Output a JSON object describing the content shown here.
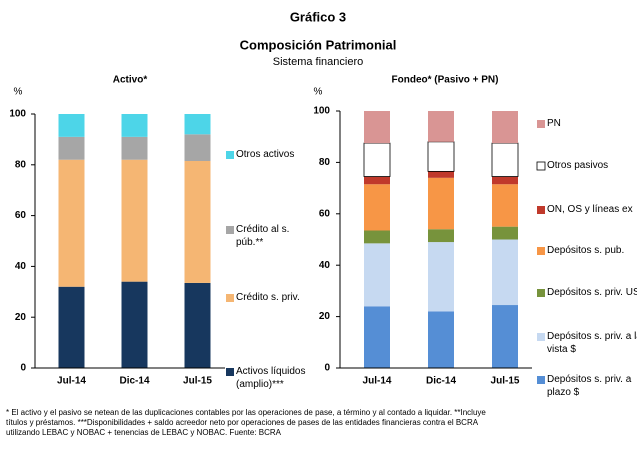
{
  "header": {
    "label": "Gráfico 3",
    "title": "Composición Patrimonial",
    "subtitle": "Sistema financiero"
  },
  "chart_data": [
    {
      "type": "bar",
      "stacked": true,
      "title": "Activo*",
      "y_label": "%",
      "categories": [
        "Jul-14",
        "Dic-14",
        "Jul-15"
      ],
      "series": [
        {
          "name": "Activos líquidos (amplio)***",
          "color": "#17375e",
          "values": [
            32,
            34,
            33.5
          ]
        },
        {
          "name": "Crédito s. priv.",
          "color": "#f5b673",
          "values": [
            50,
            48,
            48
          ]
        },
        {
          "name": "Crédito al s. púb.**",
          "color": "#a6a6a6",
          "values": [
            9,
            9,
            10.5
          ]
        },
        {
          "name": "Otros activos",
          "color": "#4dd5e8",
          "values": [
            9,
            9,
            8
          ]
        }
      ],
      "ylim": [
        0,
        100
      ],
      "yticks": [
        0,
        20,
        40,
        60,
        80,
        100
      ]
    },
    {
      "type": "bar",
      "stacked": true,
      "title": "Fondeo* (Pasivo + PN)",
      "y_label": "%",
      "categories": [
        "Jul-14",
        "Dic-14",
        "Jul-15"
      ],
      "series": [
        {
          "name": "Depósitos s. priv. a plazo $",
          "color": "#558ed5",
          "values": [
            24,
            22,
            24.5
          ]
        },
        {
          "name": "Depósitos s. priv. a la vista $",
          "color": "#c6d9f1",
          "values": [
            24.5,
            27,
            25.5
          ]
        },
        {
          "name": "Depósitos s. priv. US$",
          "color": "#77933c",
          "values": [
            5,
            5,
            5
          ]
        },
        {
          "name": "Depósitos s. pub.",
          "color": "#f79646",
          "values": [
            18,
            20,
            16.5
          ]
        },
        {
          "name": "ON, OS y líneas ex",
          "color": "#c0392b",
          "values": [
            3,
            2.5,
            3
          ]
        },
        {
          "name": "Otros pasivos",
          "color": "#ffffff",
          "values": [
            13,
            11.5,
            13
          ]
        },
        {
          "name": "PN",
          "color": "#d99594",
          "values": [
            12.5,
            12,
            12.5
          ]
        }
      ],
      "ylim": [
        0,
        100
      ],
      "yticks": [
        0,
        20,
        40,
        60,
        80,
        100
      ]
    }
  ],
  "footnote": [
    "* El activo y el pasivo se netean de las duplicaciones contables por las operaciones de pase, a término y al contado a liquidar. **Incluye",
    "títulos y préstamos. ***Disponibilidades + saldo acreedor neto por operaciones de pases de las entidades financieras contra el BCRA",
    "utilizando LEBAC y NOBAC + tenencias de LEBAC y NOBAC. Fuente: BCRA"
  ]
}
